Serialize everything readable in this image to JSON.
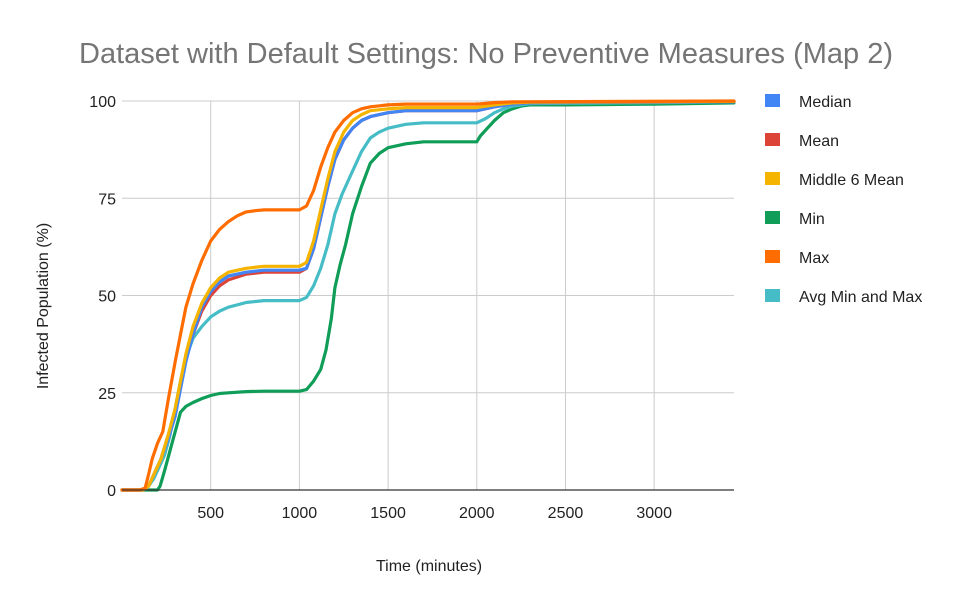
{
  "chart_data": {
    "type": "line",
    "title": "Dataset with Default Settings: No Preventive Measures (Map 2)",
    "xlabel": "Time (minutes)",
    "ylabel": "Infected Population (%)",
    "xlim": [
      0,
      3450
    ],
    "ylim": [
      0,
      100
    ],
    "x_ticks": [
      500,
      1000,
      1500,
      2000,
      2500,
      3000
    ],
    "y_ticks": [
      0,
      25,
      50,
      75,
      100
    ],
    "grid": true,
    "legend_position": "right",
    "series": [
      {
        "name": "Median",
        "color": "#4285f4",
        "points": [
          [
            0,
            0
          ],
          [
            120,
            0
          ],
          [
            150,
            1
          ],
          [
            180,
            4
          ],
          [
            220,
            8
          ],
          [
            260,
            13
          ],
          [
            300,
            19
          ],
          [
            330,
            26
          ],
          [
            360,
            33
          ],
          [
            400,
            40
          ],
          [
            450,
            47
          ],
          [
            500,
            51
          ],
          [
            550,
            53.5
          ],
          [
            600,
            55
          ],
          [
            700,
            56
          ],
          [
            800,
            56.5
          ],
          [
            1000,
            56.5
          ],
          [
            1040,
            57
          ],
          [
            1080,
            62
          ],
          [
            1120,
            70
          ],
          [
            1160,
            78
          ],
          [
            1200,
            85
          ],
          [
            1250,
            90
          ],
          [
            1300,
            93
          ],
          [
            1350,
            95
          ],
          [
            1400,
            96
          ],
          [
            1500,
            97
          ],
          [
            1600,
            97.5
          ],
          [
            2000,
            97.5
          ],
          [
            2100,
            98.5
          ],
          [
            2200,
            99.2
          ],
          [
            2300,
            99.6
          ],
          [
            3450,
            99.8
          ]
        ]
      },
      {
        "name": "Mean",
        "color": "#db4437",
        "points": [
          [
            0,
            0
          ],
          [
            120,
            0
          ],
          [
            150,
            1
          ],
          [
            180,
            4
          ],
          [
            220,
            8
          ],
          [
            260,
            14
          ],
          [
            300,
            20
          ],
          [
            330,
            27
          ],
          [
            360,
            34
          ],
          [
            400,
            40
          ],
          [
            450,
            46
          ],
          [
            500,
            50
          ],
          [
            550,
            52.5
          ],
          [
            600,
            54
          ],
          [
            700,
            55.5
          ],
          [
            800,
            56
          ],
          [
            1000,
            56
          ],
          [
            1040,
            57
          ],
          [
            1080,
            62
          ],
          [
            1120,
            70
          ],
          [
            1160,
            78
          ],
          [
            1200,
            85
          ],
          [
            1250,
            90
          ],
          [
            1300,
            93
          ],
          [
            1350,
            95
          ],
          [
            1400,
            96
          ],
          [
            1500,
            97
          ],
          [
            1600,
            97.5
          ],
          [
            2000,
            97.5
          ],
          [
            2100,
            98.5
          ],
          [
            2200,
            99.2
          ],
          [
            2300,
            99.6
          ],
          [
            3450,
            99.8
          ]
        ]
      },
      {
        "name": "Middle 6 Mean",
        "color": "#f4b400",
        "points": [
          [
            0,
            0
          ],
          [
            120,
            0
          ],
          [
            150,
            1
          ],
          [
            180,
            4
          ],
          [
            220,
            8
          ],
          [
            260,
            14
          ],
          [
            300,
            21
          ],
          [
            330,
            28
          ],
          [
            360,
            35
          ],
          [
            400,
            42
          ],
          [
            450,
            48
          ],
          [
            500,
            52
          ],
          [
            550,
            54.5
          ],
          [
            600,
            56
          ],
          [
            700,
            57
          ],
          [
            800,
            57.5
          ],
          [
            1000,
            57.5
          ],
          [
            1040,
            58.5
          ],
          [
            1080,
            64
          ],
          [
            1120,
            72
          ],
          [
            1160,
            80
          ],
          [
            1200,
            87
          ],
          [
            1250,
            92
          ],
          [
            1300,
            95
          ],
          [
            1350,
            96.5
          ],
          [
            1400,
            97.5
          ],
          [
            1500,
            98
          ],
          [
            1600,
            98.3
          ],
          [
            2000,
            98.3
          ],
          [
            2100,
            99
          ],
          [
            2200,
            99.5
          ],
          [
            2300,
            99.7
          ],
          [
            3450,
            99.9
          ]
        ]
      },
      {
        "name": "Min",
        "color": "#0f9d58",
        "points": [
          [
            0,
            0
          ],
          [
            180,
            0
          ],
          [
            200,
            0
          ],
          [
            215,
            1
          ],
          [
            240,
            5
          ],
          [
            270,
            10
          ],
          [
            300,
            15
          ],
          [
            330,
            20
          ],
          [
            360,
            21.5
          ],
          [
            400,
            22.5
          ],
          [
            450,
            23.5
          ],
          [
            500,
            24.3
          ],
          [
            550,
            24.8
          ],
          [
            600,
            25
          ],
          [
            700,
            25.3
          ],
          [
            800,
            25.4
          ],
          [
            1000,
            25.4
          ],
          [
            1040,
            25.8
          ],
          [
            1080,
            28
          ],
          [
            1120,
            31
          ],
          [
            1150,
            36
          ],
          [
            1180,
            44
          ],
          [
            1200,
            52
          ],
          [
            1230,
            58
          ],
          [
            1260,
            63
          ],
          [
            1300,
            71
          ],
          [
            1350,
            78
          ],
          [
            1400,
            84
          ],
          [
            1450,
            86.5
          ],
          [
            1500,
            88
          ],
          [
            1600,
            89
          ],
          [
            1700,
            89.5
          ],
          [
            2000,
            89.5
          ],
          [
            2020,
            91
          ],
          [
            2060,
            93
          ],
          [
            2100,
            95
          ],
          [
            2150,
            97
          ],
          [
            2200,
            98
          ],
          [
            2250,
            98.7
          ],
          [
            2300,
            99
          ],
          [
            2500,
            99
          ],
          [
            3000,
            99.2
          ],
          [
            3450,
            99.5
          ]
        ]
      },
      {
        "name": "Max",
        "color": "#ff6d01",
        "points": [
          [
            0,
            0
          ],
          [
            100,
            0
          ],
          [
            130,
            0.5
          ],
          [
            150,
            4
          ],
          [
            170,
            8
          ],
          [
            200,
            12
          ],
          [
            230,
            15
          ],
          [
            260,
            23
          ],
          [
            300,
            33
          ],
          [
            330,
            40
          ],
          [
            360,
            47
          ],
          [
            400,
            53
          ],
          [
            450,
            59
          ],
          [
            500,
            64
          ],
          [
            550,
            67
          ],
          [
            600,
            69
          ],
          [
            650,
            70.5
          ],
          [
            700,
            71.5
          ],
          [
            750,
            71.8
          ],
          [
            800,
            72
          ],
          [
            1000,
            72
          ],
          [
            1040,
            73
          ],
          [
            1080,
            77
          ],
          [
            1120,
            83
          ],
          [
            1160,
            88
          ],
          [
            1200,
            92
          ],
          [
            1250,
            95
          ],
          [
            1300,
            97
          ],
          [
            1350,
            98
          ],
          [
            1400,
            98.5
          ],
          [
            1500,
            99
          ],
          [
            1600,
            99.2
          ],
          [
            2000,
            99.2
          ],
          [
            2100,
            99.6
          ],
          [
            2200,
            99.8
          ],
          [
            3450,
            100
          ]
        ]
      },
      {
        "name": "Avg Min and Max",
        "color": "#46bdc6",
        "points": [
          [
            0,
            0
          ],
          [
            120,
            0
          ],
          [
            150,
            1
          ],
          [
            180,
            3
          ],
          [
            210,
            6
          ],
          [
            240,
            9
          ],
          [
            270,
            14
          ],
          [
            300,
            21
          ],
          [
            330,
            28
          ],
          [
            360,
            34
          ],
          [
            400,
            39
          ],
          [
            450,
            42
          ],
          [
            500,
            44.5
          ],
          [
            550,
            46
          ],
          [
            600,
            47
          ],
          [
            700,
            48.2
          ],
          [
            800,
            48.7
          ],
          [
            1000,
            48.7
          ],
          [
            1040,
            49.5
          ],
          [
            1080,
            52.5
          ],
          [
            1120,
            57
          ],
          [
            1160,
            63
          ],
          [
            1200,
            71
          ],
          [
            1240,
            76
          ],
          [
            1300,
            82
          ],
          [
            1350,
            87
          ],
          [
            1400,
            90.5
          ],
          [
            1450,
            92
          ],
          [
            1500,
            93
          ],
          [
            1600,
            94
          ],
          [
            1700,
            94.4
          ],
          [
            2000,
            94.4
          ],
          [
            2050,
            95.5
          ],
          [
            2100,
            97
          ],
          [
            2150,
            98
          ],
          [
            2200,
            98.7
          ],
          [
            2300,
            99.3
          ],
          [
            2500,
            99.4
          ],
          [
            3000,
            99.6
          ],
          [
            3450,
            99.8
          ]
        ]
      }
    ]
  }
}
